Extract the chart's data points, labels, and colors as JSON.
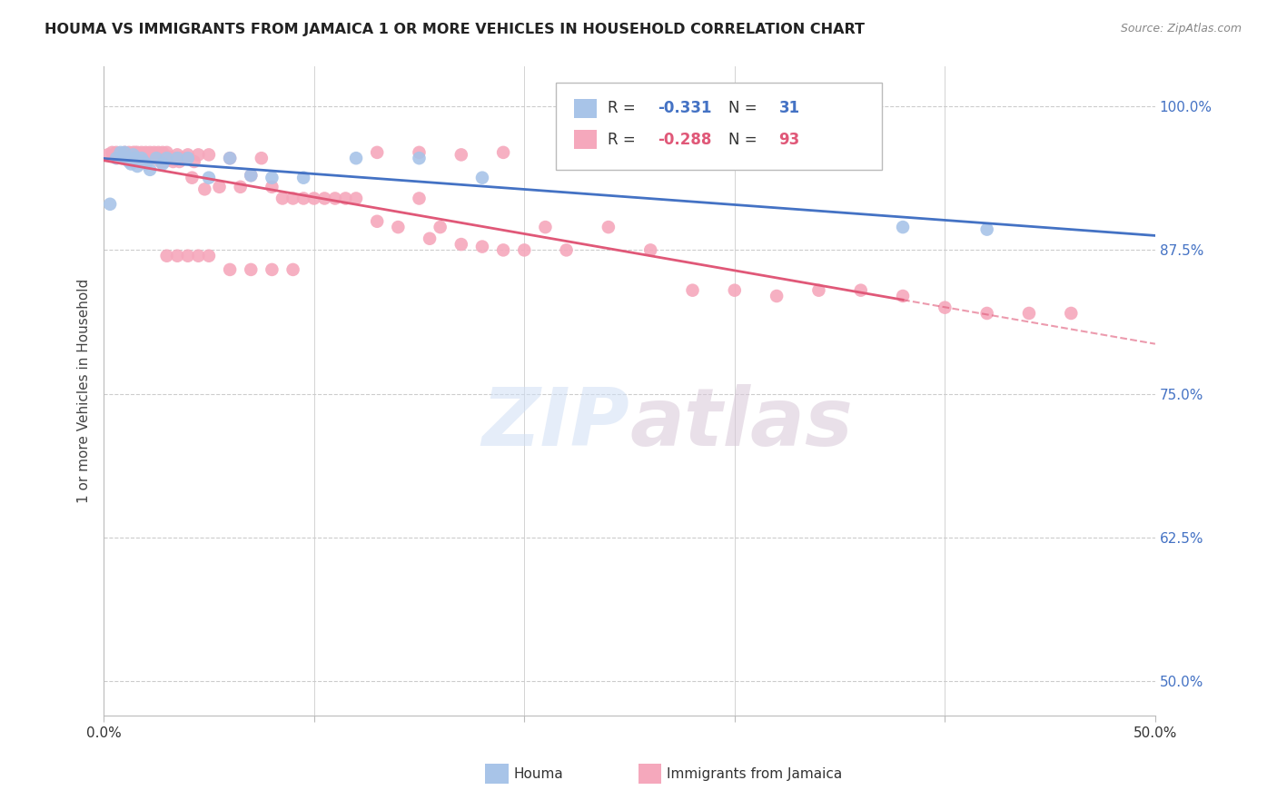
{
  "title": "HOUMA VS IMMIGRANTS FROM JAMAICA 1 OR MORE VEHICLES IN HOUSEHOLD CORRELATION CHART",
  "source": "Source: ZipAtlas.com",
  "ylabel": "1 or more Vehicles in Household",
  "ylabel_ticks": [
    "100.0%",
    "87.5%",
    "75.0%",
    "62.5%",
    "50.0%"
  ],
  "ylabel_values": [
    1.0,
    0.875,
    0.75,
    0.625,
    0.5
  ],
  "xmin": 0.0,
  "xmax": 0.5,
  "ymin": 0.47,
  "ymax": 1.035,
  "houma_R": -0.331,
  "houma_N": 31,
  "jamaica_R": -0.288,
  "jamaica_N": 93,
  "houma_color": "#a8c4e8",
  "jamaica_color": "#f5a8bc",
  "houma_line_color": "#4472c4",
  "jamaica_line_color": "#e05878",
  "background_color": "#ffffff",
  "grid_color": "#cccccc",
  "houma_x": [
    0.003,
    0.006,
    0.008,
    0.009,
    0.01,
    0.011,
    0.012,
    0.013,
    0.014,
    0.015,
    0.016,
    0.017,
    0.018,
    0.019,
    0.02,
    0.022,
    0.025,
    0.028,
    0.03,
    0.035,
    0.04,
    0.05,
    0.06,
    0.07,
    0.08,
    0.095,
    0.12,
    0.15,
    0.18,
    0.38,
    0.42
  ],
  "houma_y": [
    0.915,
    0.955,
    0.96,
    0.955,
    0.96,
    0.955,
    0.952,
    0.95,
    0.958,
    0.955,
    0.948,
    0.952,
    0.955,
    0.952,
    0.95,
    0.945,
    0.955,
    0.95,
    0.955,
    0.955,
    0.955,
    0.938,
    0.955,
    0.94,
    0.938,
    0.938,
    0.955,
    0.955,
    0.938,
    0.895,
    0.893
  ],
  "jamaica_x": [
    0.002,
    0.004,
    0.006,
    0.008,
    0.01,
    0.01,
    0.012,
    0.013,
    0.014,
    0.015,
    0.015,
    0.016,
    0.017,
    0.018,
    0.018,
    0.019,
    0.02,
    0.02,
    0.021,
    0.022,
    0.023,
    0.024,
    0.025,
    0.026,
    0.027,
    0.028,
    0.029,
    0.03,
    0.031,
    0.032,
    0.033,
    0.034,
    0.035,
    0.036,
    0.037,
    0.038,
    0.04,
    0.042,
    0.043,
    0.045,
    0.048,
    0.05,
    0.055,
    0.06,
    0.065,
    0.07,
    0.075,
    0.08,
    0.085,
    0.09,
    0.095,
    0.1,
    0.105,
    0.11,
    0.115,
    0.12,
    0.13,
    0.14,
    0.15,
    0.155,
    0.16,
    0.17,
    0.18,
    0.19,
    0.2,
    0.21,
    0.22,
    0.24,
    0.26,
    0.28,
    0.3,
    0.32,
    0.34,
    0.36,
    0.38,
    0.4,
    0.42,
    0.44,
    0.46,
    0.13,
    0.15,
    0.17,
    0.19,
    0.025,
    0.03,
    0.035,
    0.04,
    0.045,
    0.05,
    0.06,
    0.07,
    0.08,
    0.09
  ],
  "jamaica_y": [
    0.958,
    0.96,
    0.96,
    0.958,
    0.96,
    0.956,
    0.96,
    0.958,
    0.96,
    0.96,
    0.958,
    0.96,
    0.958,
    0.96,
    0.956,
    0.955,
    0.96,
    0.956,
    0.955,
    0.96,
    0.955,
    0.96,
    0.958,
    0.96,
    0.952,
    0.96,
    0.952,
    0.96,
    0.956,
    0.955,
    0.952,
    0.955,
    0.958,
    0.952,
    0.955,
    0.955,
    0.958,
    0.938,
    0.952,
    0.958,
    0.928,
    0.958,
    0.93,
    0.955,
    0.93,
    0.94,
    0.955,
    0.93,
    0.92,
    0.92,
    0.92,
    0.92,
    0.92,
    0.92,
    0.92,
    0.92,
    0.9,
    0.895,
    0.92,
    0.885,
    0.895,
    0.88,
    0.878,
    0.875,
    0.875,
    0.895,
    0.875,
    0.895,
    0.875,
    0.84,
    0.84,
    0.835,
    0.84,
    0.84,
    0.835,
    0.825,
    0.82,
    0.82,
    0.82,
    0.96,
    0.96,
    0.958,
    0.96,
    0.955,
    0.87,
    0.87,
    0.87,
    0.87,
    0.87,
    0.858,
    0.858,
    0.858,
    0.858
  ]
}
